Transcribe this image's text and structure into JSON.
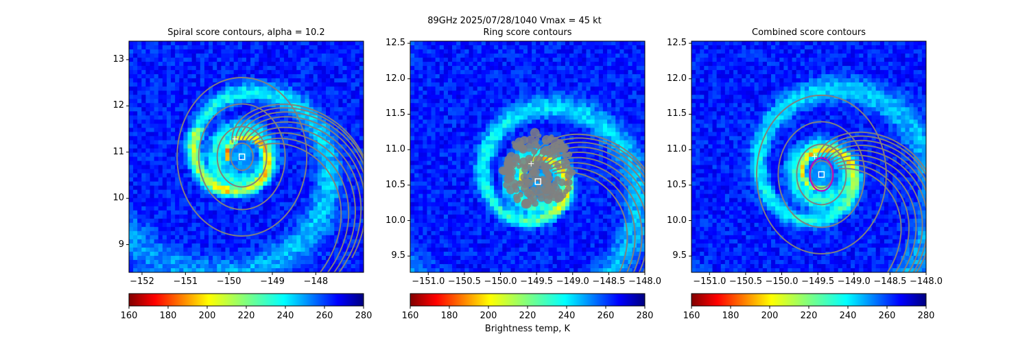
{
  "figure": {
    "suptitle": "89GHz  2025/07/28/1040    Vmax = 45 kt",
    "colorbar_label": "Brightness temp, K"
  },
  "colors": {
    "contour": "#808080",
    "combined_contour": "#c000c0",
    "center_marker": "#ffffff",
    "colormap": "jet_r"
  },
  "chart_data": [
    {
      "type": "heatmap",
      "title": "Spiral score contours, alpha = 10.2",
      "xlim": [
        -152.3,
        -146.9
      ],
      "ylim": [
        8.4,
        13.4
      ],
      "xticks": [
        -152,
        -151,
        -150,
        -149,
        -148
      ],
      "xtick_labels": [
        "−152",
        "−151",
        "−150",
        "−149",
        "−148"
      ],
      "yticks": [
        9,
        10,
        11,
        12,
        13
      ],
      "ytick_labels": [
        "9",
        "10",
        "11",
        "12",
        "13"
      ],
      "center": [
        -149.7,
        10.9
      ],
      "colorbar": {
        "min": 160,
        "max": 280,
        "ticks": [
          160,
          180,
          200,
          220,
          240,
          260,
          280
        ],
        "colormap": "jet_r"
      }
    },
    {
      "type": "heatmap",
      "title": "Ring score contours",
      "xlim": [
        -151.25,
        -148.0
      ],
      "ylim": [
        9.27,
        12.53
      ],
      "xticks": [
        -151.0,
        -150.5,
        -150.0,
        -149.5,
        -149.0,
        -148.5,
        -148.0
      ],
      "xtick_labels": [
        "−151.0",
        "−150.5",
        "−150.0",
        "−149.5",
        "−149.0",
        "−148.5",
        "−148.0"
      ],
      "yticks": [
        9.5,
        10.0,
        10.5,
        11.0,
        11.5,
        12.0,
        12.5
      ],
      "ytick_labels": [
        "9.5",
        "10.0",
        "10.5",
        "11.0",
        "11.5",
        "12.0",
        "12.5"
      ],
      "center": [
        -149.48,
        10.55
      ],
      "colorbar": {
        "min": 160,
        "max": 280,
        "ticks": [
          160,
          180,
          200,
          220,
          240,
          260,
          280
        ],
        "colormap": "jet_r"
      }
    },
    {
      "type": "heatmap",
      "title": "Combined score contours",
      "xlim": [
        -151.25,
        -148.0
      ],
      "ylim": [
        9.27,
        12.53
      ],
      "xticks": [
        -151.0,
        -150.5,
        -150.0,
        -149.5,
        -149.0,
        -148.5,
        -148.0
      ],
      "xtick_labels": [
        "−151.0",
        "−150.5",
        "−150.0",
        "−149.5",
        "−149.0",
        "−148.5",
        "−148.0"
      ],
      "yticks": [
        9.5,
        10.0,
        10.5,
        11.0,
        11.5,
        12.0,
        12.5
      ],
      "ytick_labels": [
        "9.5",
        "10.0",
        "10.5",
        "11.0",
        "11.5",
        "12.0",
        "12.5"
      ],
      "center": [
        -149.45,
        10.65
      ],
      "colorbar": {
        "min": 160,
        "max": 280,
        "ticks": [
          160,
          180,
          200,
          220,
          240,
          260,
          280
        ],
        "colormap": "jet_r"
      }
    }
  ]
}
